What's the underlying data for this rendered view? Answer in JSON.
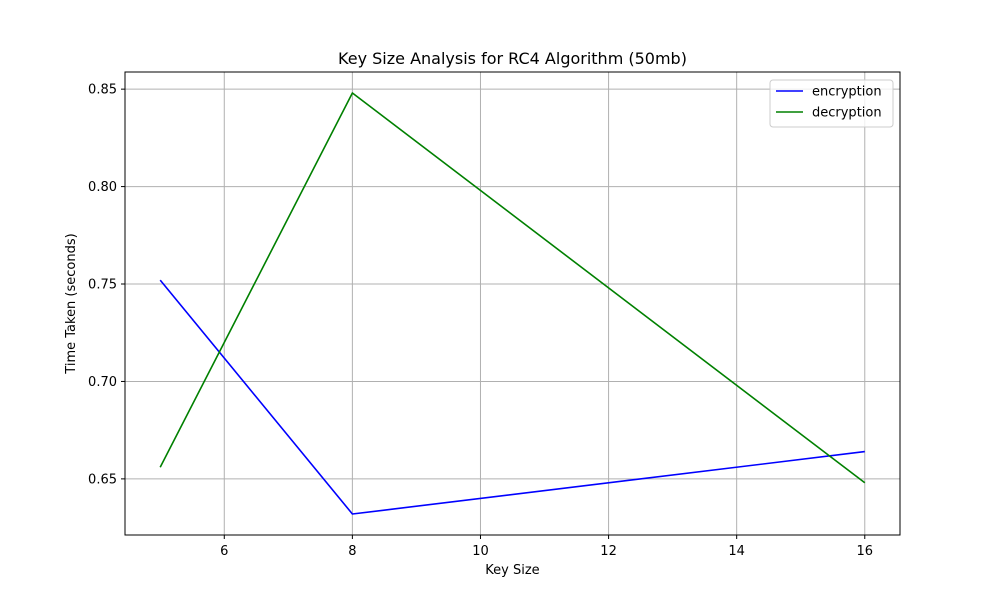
{
  "chart_data": {
    "type": "line",
    "title": "Key Size Analysis for RC4 Algorithm (50mb)",
    "xlabel": "Key Size",
    "ylabel": "Time Taken (seconds)",
    "x": [
      5,
      8,
      16
    ],
    "series": [
      {
        "name": "encryption",
        "color": "#0000ff",
        "values": [
          0.752,
          0.632,
          0.664
        ]
      },
      {
        "name": "decryption",
        "color": "#008000",
        "values": [
          0.656,
          0.848,
          0.648
        ]
      }
    ],
    "xlim": [
      4.45,
      16.55
    ],
    "ylim": [
      0.6212,
      0.8588
    ],
    "xticks": [
      6,
      8,
      10,
      12,
      14,
      16
    ],
    "xtick_labels": [
      "6",
      "8",
      "10",
      "12",
      "14",
      "16"
    ],
    "yticks": [
      0.65,
      0.7,
      0.75,
      0.8,
      0.85
    ],
    "ytick_labels": [
      "0.65",
      "0.70",
      "0.75",
      "0.80",
      "0.85"
    ],
    "grid": true,
    "legend_position": "top-right"
  }
}
